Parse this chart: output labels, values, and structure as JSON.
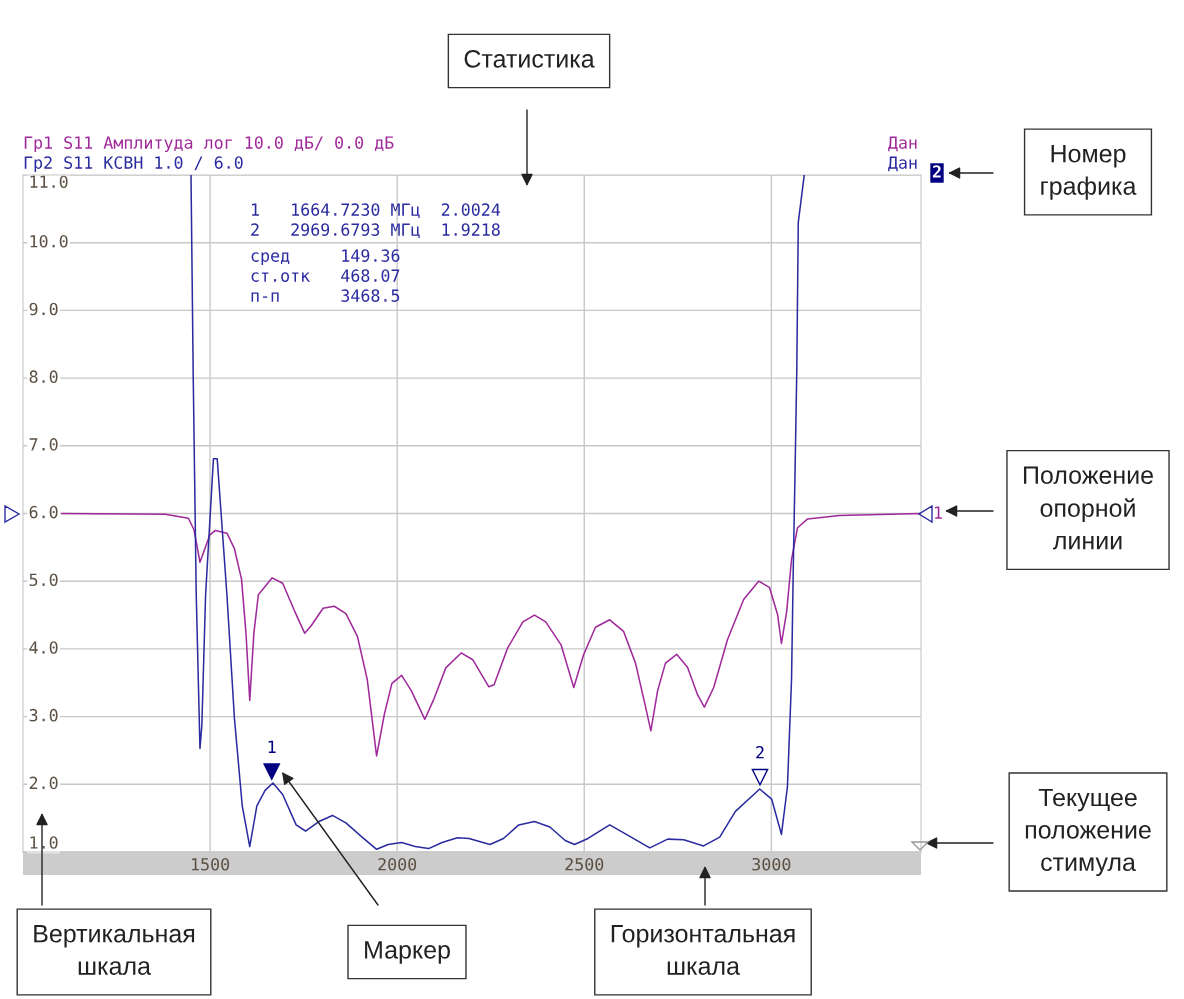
{
  "chart_data": {
    "type": "line",
    "xlim": [
      1000,
      3400
    ],
    "xticks": [
      1500,
      2000,
      2500,
      3000
    ],
    "ylim": [
      1,
      11
    ],
    "yticks": [
      {
        "value": 1,
        "label": "1.0"
      },
      {
        "value": 2,
        "label": "2.0"
      },
      {
        "value": 3,
        "label": "3.0"
      },
      {
        "value": 4,
        "label": "4.0"
      },
      {
        "value": 5,
        "label": "5.0"
      },
      {
        "value": 6,
        "label": "6.0"
      },
      {
        "value": 7,
        "label": "7.0"
      },
      {
        "value": 8,
        "label": "8.0"
      },
      {
        "value": 9,
        "label": "9.0"
      },
      {
        "value": 10,
        "label": "10.0"
      },
      {
        "value": 11,
        "label": "11.0"
      }
    ],
    "grid": true,
    "series": [
      {
        "name": "Гр1 S11 Амплитуда лог 10.0 дБ/ 0.0 дБ",
        "color": "#a0299a",
        "x": [
          1104,
          1380,
          1442,
          1457,
          1473,
          1499,
          1514,
          1545,
          1565,
          1584,
          1596,
          1606,
          1617,
          1629,
          1666,
          1694,
          1725,
          1753,
          1771,
          1802,
          1832,
          1863,
          1894,
          1920,
          1945,
          1966,
          1986,
          2012,
          2038,
          2074,
          2099,
          2130,
          2171,
          2202,
          2245,
          2259,
          2295,
          2336,
          2367,
          2397,
          2438,
          2472,
          2498,
          2530,
          2568,
          2605,
          2637,
          2664,
          2678,
          2696,
          2717,
          2747,
          2776,
          2803,
          2821,
          2846,
          2883,
          2926,
          2966,
          2995,
          3017,
          3027,
          3041,
          3054,
          3070,
          3097,
          3182,
          3400
        ],
        "values": [
          6.0,
          5.99,
          5.93,
          5.76,
          5.28,
          5.68,
          5.75,
          5.71,
          5.48,
          5.03,
          4.23,
          3.24,
          4.23,
          4.8,
          5.05,
          4.97,
          4.57,
          4.23,
          4.35,
          4.6,
          4.63,
          4.52,
          4.18,
          3.55,
          2.42,
          3.04,
          3.49,
          3.61,
          3.38,
          2.96,
          3.27,
          3.72,
          3.94,
          3.84,
          3.44,
          3.47,
          4.01,
          4.4,
          4.5,
          4.4,
          4.06,
          3.43,
          3.91,
          4.32,
          4.43,
          4.26,
          3.79,
          3.14,
          2.79,
          3.38,
          3.79,
          3.92,
          3.73,
          3.32,
          3.14,
          3.43,
          4.14,
          4.73,
          5.0,
          4.91,
          4.5,
          4.08,
          4.55,
          5.32,
          5.79,
          5.92,
          5.97,
          6.0
        ]
      },
      {
        "name": "Гр2 S11 КСВН 1.0 / 6.0",
        "color": "#2b2ba0",
        "x": [
          1449,
          1455,
          1460,
          1463,
          1473,
          1478,
          1488,
          1509,
          1519,
          1545,
          1565,
          1586,
          1606,
          1625,
          1647,
          1668,
          1694,
          1730,
          1755,
          1791,
          1827,
          1863,
          1904,
          1945,
          1976,
          2012,
          2048,
          2084,
          2120,
          2161,
          2192,
          2248,
          2284,
          2325,
          2367,
          2408,
          2449,
          2474,
          2510,
          2568,
          2616,
          2675,
          2723,
          2766,
          2819,
          2862,
          2904,
          2969,
          3001,
          3027,
          3043,
          3054,
          3059,
          3063,
          3068,
          3072,
          3088
        ],
        "values": [
          11.0,
          8.0,
          6.0,
          4.8,
          2.53,
          2.87,
          4.8,
          6.81,
          6.81,
          4.8,
          2.98,
          1.68,
          1.08,
          1.68,
          1.91,
          2.02,
          1.85,
          1.4,
          1.31,
          1.45,
          1.54,
          1.43,
          1.23,
          1.04,
          1.11,
          1.14,
          1.08,
          1.05,
          1.14,
          1.21,
          1.2,
          1.11,
          1.2,
          1.4,
          1.45,
          1.37,
          1.17,
          1.11,
          1.2,
          1.4,
          1.25,
          1.06,
          1.19,
          1.18,
          1.09,
          1.22,
          1.6,
          1.93,
          1.78,
          1.26,
          1.96,
          3.55,
          5.32,
          6.5,
          8.1,
          10.3,
          11.0
        ]
      }
    ],
    "annotations": [
      "1   1664.7230 МГц  2.0024",
      "2   2969.6793 МГц  1.9218",
      "сред     149.36",
      "ст.отк   468.07",
      "п-п      3468.5",
      "Дан",
      "Дан",
      "2",
      "1",
      "Статистика",
      "Номер\nграфика",
      "Положение\nопорной\nлинии",
      "Текущее\nположение\nстимула",
      "Вертикальная\nшкала",
      "Маркер",
      "Горизонтальная\nшкала",
      {
        "text": "1",
        "x": 1664.723,
        "y": 2.0024
      },
      {
        "text": "2",
        "x": 2969.6793,
        "y": 1.9218
      }
    ]
  }
}
